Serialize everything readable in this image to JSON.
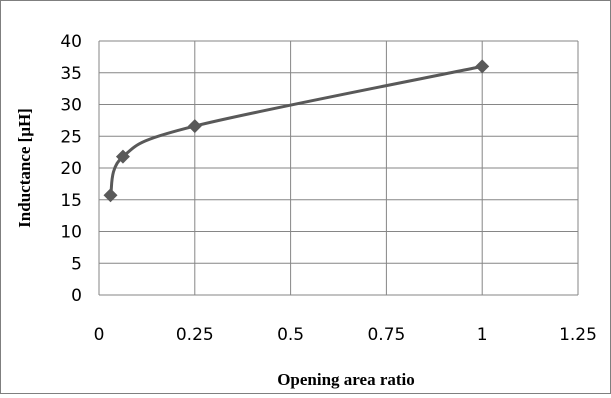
{
  "chart_data": {
    "type": "scatter",
    "title": "",
    "xlabel": "Opening area ratio",
    "ylabel": "Inductance [μH]",
    "xlim": [
      0,
      1.25
    ],
    "ylim": [
      0,
      40
    ],
    "x_ticks": [
      0,
      0.25,
      0.5,
      0.75,
      1,
      1.25
    ],
    "x_tick_labels": [
      "0",
      "0.25",
      "0.5",
      "0.75",
      "1",
      "1.25"
    ],
    "y_ticks": [
      0,
      5,
      10,
      15,
      20,
      25,
      30,
      35,
      40
    ],
    "y_tick_labels": [
      "0",
      "5",
      "10",
      "15",
      "20",
      "25",
      "30",
      "35",
      "40"
    ],
    "grid": true,
    "legend": "none",
    "smoothed_line": true,
    "marker": "diamond",
    "series_color": "#595959",
    "grid_color": "#868686",
    "series": [
      {
        "x": [
          0.03,
          0.0625,
          0.25,
          1
        ],
        "y": [
          15.7,
          21.8,
          26.6,
          36
        ]
      }
    ]
  }
}
